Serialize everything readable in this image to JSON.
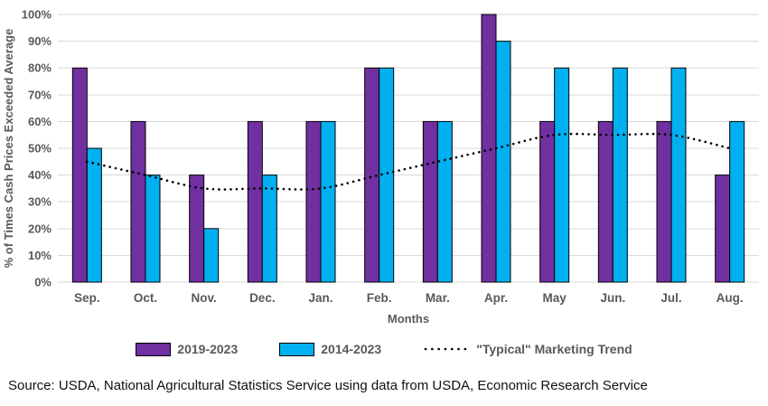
{
  "chart_data": {
    "type": "bar",
    "title": "",
    "categories": [
      "Sep.",
      "Oct.",
      "Nov.",
      "Dec.",
      "Jan.",
      "Feb.",
      "Mar.",
      "Apr.",
      "May",
      "Jun.",
      "Jul.",
      "Aug."
    ],
    "series": [
      {
        "name": "2019-2023",
        "type": "bar",
        "color": "#7030A0",
        "values": [
          80,
          60,
          40,
          60,
          60,
          80,
          60,
          100,
          60,
          60,
          60,
          40
        ]
      },
      {
        "name": "2014-2023",
        "type": "bar",
        "color": "#00B0F0",
        "values": [
          50,
          40,
          20,
          40,
          60,
          80,
          60,
          90,
          80,
          80,
          80,
          60
        ]
      },
      {
        "name": "\"Typical\" Marketing Trend",
        "type": "dotted-line",
        "color": "#000000",
        "values": [
          45,
          40,
          35,
          35,
          35,
          40,
          45,
          50,
          55,
          55,
          55,
          50
        ]
      }
    ],
    "xlabel": "Months",
    "ylabel": "% of Times Cash Prices Exceeded Average",
    "ylim": [
      0,
      100
    ],
    "yticks": [
      "0%",
      "10%",
      "20%",
      "30%",
      "40%",
      "50%",
      "60%",
      "70%",
      "80%",
      "90%",
      "100%"
    ],
    "grid": true,
    "gridline_color": "#D9D9D9",
    "axis_text_color": "#595959",
    "legend_position": "bottom"
  },
  "source_note": "Source: USDA, National Agricultural Statistics Service using data from USDA, Economic Research Service"
}
